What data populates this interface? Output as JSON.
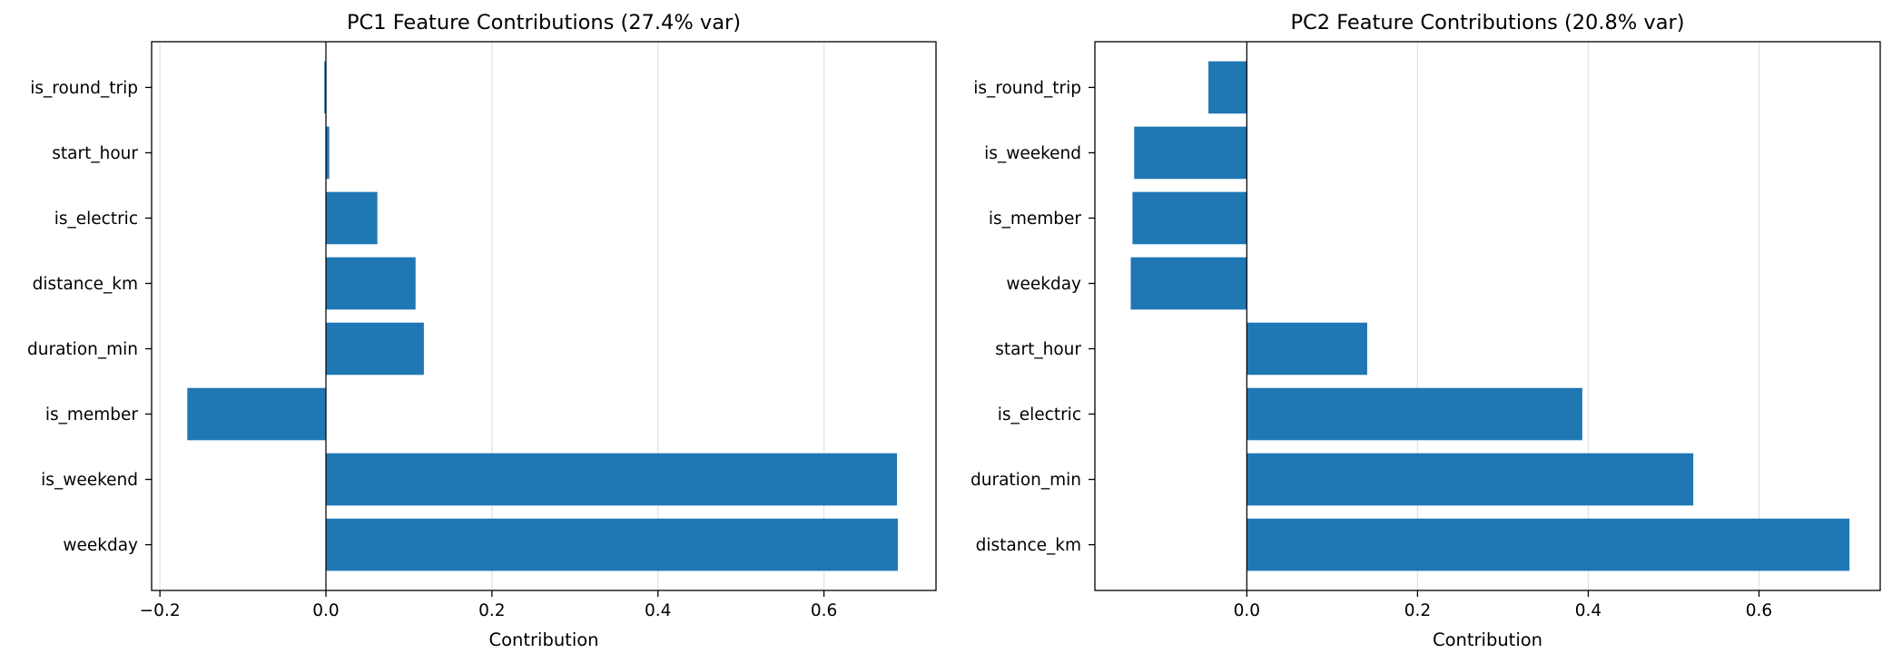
{
  "chart_data": [
    {
      "type": "bar",
      "orientation": "horizontal",
      "title": "PC1 Feature Contributions (27.4% var)",
      "xlabel": "Contribution",
      "ylabel": "",
      "xlim": [
        -0.21,
        0.735
      ],
      "xticks": [
        -0.2,
        0.0,
        0.2,
        0.4,
        0.6
      ],
      "xtick_labels": [
        "−0.2",
        "0.0",
        "0.2",
        "0.4",
        "0.6"
      ],
      "grid": "x",
      "categories": [
        "is_round_trip",
        "start_hour",
        "is_electric",
        "distance_km",
        "duration_min",
        "is_member",
        "is_weekend",
        "weekday"
      ],
      "values": [
        -0.002,
        0.004,
        0.062,
        0.108,
        0.118,
        -0.167,
        0.688,
        0.689
      ],
      "color": "#1f77b4"
    },
    {
      "type": "bar",
      "orientation": "horizontal",
      "title": "PC2 Feature Contributions (20.8% var)",
      "xlabel": "Contribution",
      "ylabel": "",
      "xlim": [
        -0.178,
        0.742
      ],
      "xticks": [
        0.0,
        0.2,
        0.4,
        0.6
      ],
      "xtick_labels": [
        "0.0",
        "0.2",
        "0.4",
        "0.6"
      ],
      "grid": "x",
      "categories": [
        "is_round_trip",
        "is_weekend",
        "is_member",
        "weekday",
        "start_hour",
        "is_electric",
        "duration_min",
        "distance_km"
      ],
      "values": [
        -0.045,
        -0.132,
        -0.134,
        -0.136,
        0.141,
        0.393,
        0.523,
        0.706
      ],
      "color": "#1f77b4"
    }
  ]
}
